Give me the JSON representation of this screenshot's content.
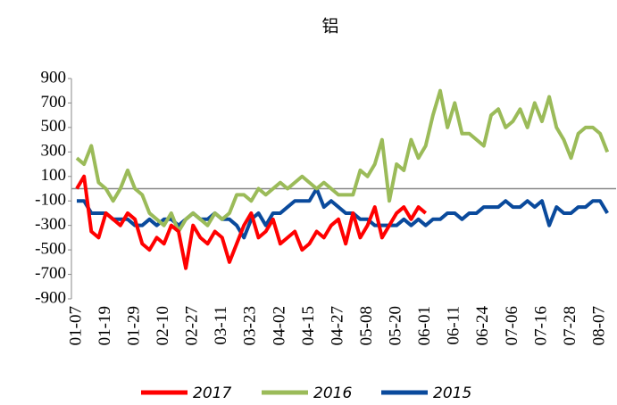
{
  "chart_data": {
    "type": "line",
    "title": "铝",
    "categories": [
      "01-07",
      null,
      null,
      null,
      "01-19",
      null,
      null,
      null,
      "01-29",
      null,
      null,
      null,
      "02-10",
      null,
      null,
      null,
      "02-27",
      null,
      null,
      null,
      "03-11",
      null,
      null,
      null,
      "03-23",
      null,
      null,
      null,
      "04-02",
      null,
      null,
      null,
      "04-15",
      null,
      null,
      null,
      "04-27",
      null,
      null,
      null,
      "05-08",
      null,
      null,
      null,
      "05-20",
      null,
      null,
      null,
      "06-01",
      null,
      null,
      null,
      "06-11",
      null,
      null,
      null,
      "06-24",
      null,
      null,
      null,
      "07-06",
      null,
      null,
      null,
      "07-16",
      null,
      null,
      null,
      "07-28",
      null,
      null,
      null,
      "08-07",
      null
    ],
    "series": [
      {
        "name": "2017",
        "color": "#ff0000",
        "values": [
          0,
          100,
          -350,
          -400,
          -200,
          -250,
          -300,
          -200,
          -250,
          -450,
          -500,
          -400,
          -450,
          -300,
          -350,
          -650,
          -300,
          -400,
          -450,
          -350,
          -400,
          -600,
          -450,
          -300,
          -200,
          -400,
          -350,
          -250,
          -450,
          -400,
          -350,
          -500,
          -450,
          -350,
          -400,
          -300,
          -250,
          -450,
          -200,
          -400,
          -300,
          -150,
          -400,
          -300,
          -200,
          -150,
          -250,
          -150,
          -200,
          null,
          null,
          null,
          null,
          null,
          null,
          null,
          null,
          null,
          null,
          null,
          null,
          null,
          null,
          null,
          null,
          null,
          null,
          null,
          null,
          null,
          null,
          null,
          null,
          null
        ]
      },
      {
        "name": "2016",
        "color": "#9bbb59",
        "values": [
          250,
          200,
          350,
          50,
          0,
          -100,
          0,
          150,
          0,
          -50,
          -200,
          -250,
          -300,
          -200,
          -350,
          -250,
          -200,
          -250,
          -300,
          -200,
          -250,
          -200,
          -50,
          -50,
          -100,
          0,
          -50,
          0,
          50,
          0,
          50,
          100,
          50,
          0,
          50,
          0,
          -50,
          -50,
          -50,
          150,
          100,
          200,
          400,
          -100,
          200,
          150,
          400,
          250,
          350,
          600,
          800,
          500,
          700,
          450,
          450,
          400,
          350,
          600,
          650,
          500,
          550,
          650,
          500,
          700,
          550,
          750,
          500,
          400,
          250,
          450,
          500,
          500,
          450,
          300
        ]
      },
      {
        "name": "2015",
        "color": "#0a4a9c",
        "values": [
          -100,
          -100,
          -200,
          -200,
          -200,
          -250,
          -250,
          -250,
          -300,
          -300,
          -250,
          -300,
          -250,
          -250,
          -300,
          -250,
          -200,
          -250,
          -250,
          -200,
          -250,
          -250,
          -300,
          -400,
          -250,
          -200,
          -300,
          -200,
          -200,
          -150,
          -100,
          -100,
          -100,
          0,
          -150,
          -100,
          -150,
          -200,
          -200,
          -250,
          -250,
          -300,
          -300,
          -300,
          -300,
          -250,
          -300,
          -250,
          -300,
          -250,
          -250,
          -200,
          -200,
          -250,
          -200,
          -200,
          -150,
          -150,
          -150,
          -100,
          -150,
          -150,
          -100,
          -150,
          -100,
          -300,
          -150,
          -200,
          -200,
          -150,
          -150,
          -100,
          -100,
          -200
        ]
      }
    ],
    "ylim": [
      -900,
      900
    ],
    "yticks": [
      -900,
      -700,
      -500,
      -300,
      -100,
      100,
      300,
      500,
      700,
      900
    ]
  }
}
